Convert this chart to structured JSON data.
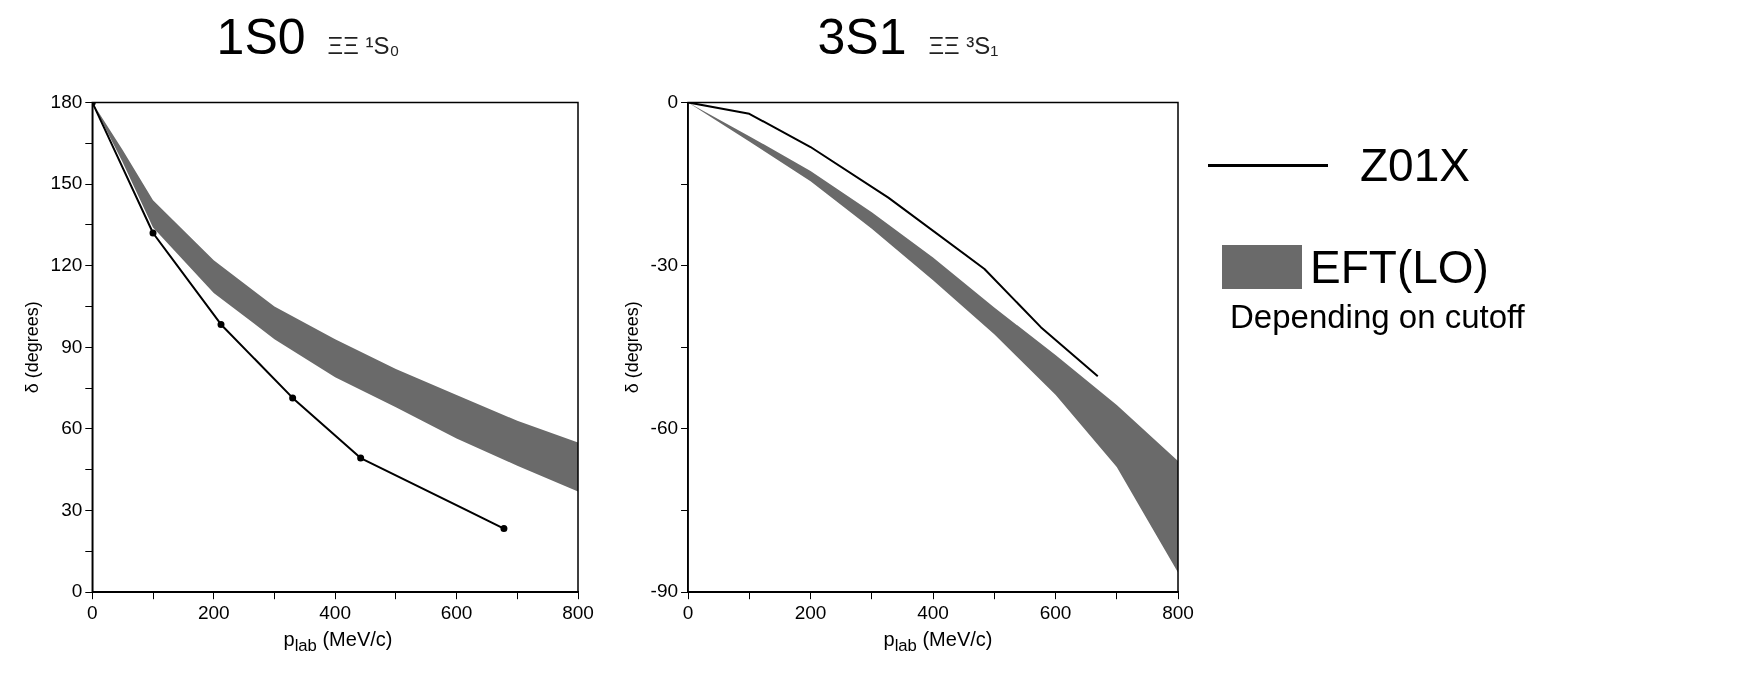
{
  "chart_data": [
    {
      "type": "line",
      "title": "1S0",
      "subtitle": "ΞΞ ¹S₀",
      "xlabel": "p$_{lab}$ (MeV/c)",
      "ylabel": "δ (degrees)",
      "xlim": [
        0,
        800
      ],
      "xticks": [
        0,
        {
          "value": 100,
          "label": null
        },
        200,
        {
          "value": 300,
          "label": null
        },
        400,
        {
          "value": 500,
          "label": null
        },
        600,
        {
          "value": 700,
          "label": null
        },
        800
      ],
      "ylim": [
        0,
        180
      ],
      "yticks": [
        0,
        {
          "value": 15,
          "label": null
        },
        30,
        {
          "value": 45,
          "label": null
        },
        60,
        {
          "value": 75,
          "label": null
        },
        90,
        {
          "value": 105,
          "label": null
        },
        120,
        {
          "value": 135,
          "label": null
        },
        150,
        {
          "value": 165,
          "label": null
        },
        180
      ],
      "grid": false,
      "legend": false,
      "marker": "circle",
      "series": [
        {
          "type": "line",
          "color": "#000000",
          "x": [
            0,
            100,
            212,
            330,
            442,
            678
          ],
          "values": [
            180,
            132,
            98.4,
            71.4,
            49.3,
            23.4
          ]
        },
        {
          "type": "area",
          "color": "#6a6a6a",
          "x": [
            0,
            50,
            100,
            200,
            300,
            400,
            500,
            600,
            700,
            800
          ],
          "values": [
            null,
            null,
            null,
            null,
            null,
            null,
            null,
            null,
            null,
            null
          ],
          "lower": [
            180,
            158,
            134,
            110,
            93,
            79,
            68,
            56.5,
            46.5,
            37
          ],
          "upper": [
            180,
            162.5,
            144,
            122,
            105,
            93,
            82,
            72.5,
            63,
            55
          ]
        }
      ]
    },
    {
      "type": "line",
      "title": "3S1",
      "subtitle": "ΞΞ ³S₁",
      "xlabel": "p$_{lab}$ (MeV/c)",
      "ylabel": "δ (degrees)",
      "xlim": [
        0,
        800
      ],
      "xticks": [
        0,
        {
          "value": 100,
          "label": null
        },
        200,
        {
          "value": 300,
          "label": null
        },
        400,
        {
          "value": 500,
          "label": null
        },
        600,
        {
          "value": 700,
          "label": null
        },
        800
      ],
      "ylim": [
        -90,
        0
      ],
      "yticks": [
        -90,
        {
          "value": -75,
          "label": null
        },
        -60,
        {
          "value": -45,
          "label": null
        },
        -30,
        {
          "value": -15,
          "label": null
        },
        0
      ],
      "grid": false,
      "legend": "right",
      "annotations": [
        "Depending on cutoff"
      ],
      "series": [
        {
          "name": "Z01X",
          "type": "line",
          "color": "#000000",
          "x": [
            0,
            100,
            200,
            327,
            484,
            576,
            669
          ],
          "values": [
            0,
            -2.1,
            -8.2,
            -17.5,
            -30.6,
            -41.3,
            -50.3
          ]
        },
        {
          "name": "EFT(LO)",
          "type": "area",
          "color": "#6a6a6a",
          "x": [
            0,
            100,
            200,
            300,
            400,
            500,
            600,
            700,
            800
          ],
          "values": [
            null,
            null,
            null,
            null,
            null,
            null,
            null,
            null,
            null
          ],
          "lower": [
            0,
            -7.2,
            -14.5,
            -23.2,
            -32.7,
            -42.6,
            -53.7,
            -67,
            -86.4
          ],
          "upper": [
            0,
            -6.2,
            -12.6,
            -20.2,
            -28.5,
            -37.7,
            -46.4,
            -55.6,
            -65.9
          ]
        }
      ]
    }
  ]
}
